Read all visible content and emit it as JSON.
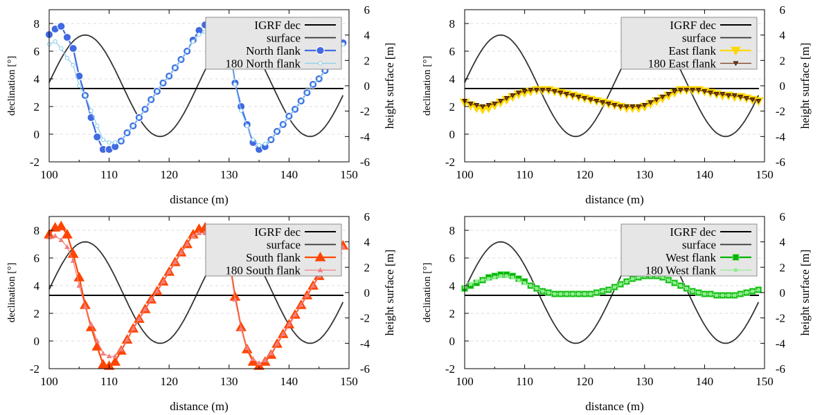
{
  "chart_data": [
    {
      "type": "line",
      "panel": "north",
      "xlabel": "distance (m)",
      "ylabel": "declination [°]",
      "y2label": "height surface [m]",
      "xlim": [
        100,
        150
      ],
      "ylim": [
        -2,
        9
      ],
      "y2lim": [
        -6,
        6
      ],
      "xticks": [
        "100",
        "110",
        "120",
        "130",
        "140",
        "150"
      ],
      "yticks": [
        "-2",
        "0",
        "2",
        "4",
        "6",
        "8"
      ],
      "y2ticks": [
        "-6",
        "-4",
        "-2",
        "0",
        "2",
        "4",
        "6"
      ],
      "grid": "horizontal dashed",
      "legend_position": "top-right",
      "igrf_dec": 3.3,
      "surface": {
        "axis": "right",
        "mean": 0,
        "amplitude": 4,
        "period": 25,
        "peak_x": 106
      },
      "series": [
        {
          "name": "IGRF dec",
          "kind": "igrf",
          "color": "#000000"
        },
        {
          "name": "surface",
          "kind": "surface",
          "color": "#333333"
        },
        {
          "name": "North flank",
          "kind": "main",
          "marker": "circle",
          "color": "#4169e1",
          "x": [
            100,
            101,
            102,
            103,
            104,
            105,
            106,
            107,
            108,
            109,
            110,
            111,
            112,
            113,
            114,
            115,
            116,
            117,
            118,
            119,
            120,
            121,
            122,
            123,
            124,
            125,
            126,
            127,
            128,
            129,
            130,
            131,
            132,
            133,
            134,
            135,
            136,
            137,
            138,
            139,
            140,
            141,
            142,
            143,
            144,
            145,
            146,
            147,
            148,
            149
          ],
          "values": [
            7.2,
            7.6,
            7.8,
            7.0,
            6.2,
            4.2,
            2.8,
            1.2,
            -0.2,
            -1.1,
            -1.1,
            -0.9,
            -0.5,
            0.1,
            0.6,
            1.2,
            1.8,
            2.5,
            3.1,
            3.7,
            4.2,
            4.8,
            5.4,
            6.0,
            6.8,
            7.5,
            7.9,
            7.4,
            7.5,
            7.5,
            6.5,
            3.7,
            2.0,
            0.7,
            -0.6,
            -1.1,
            -0.9,
            -0.4,
            0.2,
            0.7,
            1.3,
            1.8,
            2.4,
            3.0,
            3.6,
            4.0,
            4.6,
            5.2,
            5.8,
            6.6
          ]
        },
        {
          "name": "180 North flank",
          "kind": "c180",
          "marker": "small-circle",
          "color": "#87ceeb",
          "x": [
            100,
            101,
            102,
            103,
            104,
            105,
            106,
            107,
            108,
            109,
            110,
            111,
            112,
            113,
            114,
            115,
            116,
            117,
            118,
            119,
            120,
            121,
            122,
            123,
            124,
            125,
            126,
            127,
            128,
            129,
            130,
            131,
            132,
            133,
            134,
            135,
            136,
            137,
            138,
            139,
            140,
            141,
            142,
            143,
            144,
            145,
            146,
            147,
            148,
            149
          ],
          "values": [
            6.5,
            6.7,
            6.2,
            5.5,
            5.0,
            3.5,
            2.8,
            1.7,
            0.6,
            -0.4,
            -0.6,
            -0.6,
            -0.5,
            0.1,
            0.6,
            1.2,
            1.8,
            2.5,
            3.1,
            3.7,
            4.2,
            4.8,
            5.4,
            6.0,
            6.7,
            7.2,
            7.4,
            7.2,
            7.3,
            7.2,
            6.3,
            3.6,
            1.7,
            0.6,
            -0.4,
            -0.8,
            -0.7,
            -0.4,
            0.2,
            0.7,
            1.3,
            1.8,
            2.4,
            3.0,
            3.6,
            4.0,
            4.6,
            5.2,
            5.8,
            6.5
          ]
        }
      ]
    },
    {
      "type": "line",
      "panel": "east",
      "xlabel": "distance (m)",
      "ylabel": "declination [°]",
      "y2label": "height surface [m]",
      "xlim": [
        100,
        150
      ],
      "ylim": [
        -2,
        9
      ],
      "y2lim": [
        -6,
        6
      ],
      "xticks": [
        "100",
        "110",
        "120",
        "130",
        "140",
        "150"
      ],
      "yticks": [
        "-2",
        "0",
        "2",
        "4",
        "6",
        "8"
      ],
      "y2ticks": [
        "-6",
        "-4",
        "-2",
        "0",
        "2",
        "4",
        "6"
      ],
      "grid": "horizontal dashed",
      "legend_position": "top-right",
      "igrf_dec": 3.3,
      "surface": {
        "axis": "right",
        "mean": 0,
        "amplitude": 4,
        "period": 25,
        "peak_x": 106
      },
      "series": [
        {
          "name": "IGRF dec",
          "kind": "igrf",
          "color": "#000000"
        },
        {
          "name": "surface",
          "kind": "surface",
          "color": "#333333"
        },
        {
          "name": "East flank",
          "kind": "main",
          "marker": "triangle-down",
          "color": "#ffd700",
          "x": [
            100,
            101,
            102,
            103,
            104,
            105,
            106,
            107,
            108,
            109,
            110,
            111,
            112,
            113,
            114,
            115,
            116,
            117,
            118,
            119,
            120,
            121,
            122,
            123,
            124,
            125,
            126,
            127,
            128,
            129,
            130,
            131,
            132,
            133,
            134,
            135,
            136,
            137,
            138,
            139,
            140,
            141,
            142,
            143,
            144,
            145,
            146,
            147,
            148,
            149
          ],
          "values": [
            2.3,
            2.1,
            1.9,
            1.8,
            1.9,
            2.1,
            2.3,
            2.5,
            2.7,
            2.9,
            3.0,
            3.1,
            3.2,
            3.2,
            3.2,
            3.1,
            3.0,
            2.9,
            2.8,
            2.7,
            2.6,
            2.5,
            2.4,
            2.3,
            2.2,
            2.1,
            2.0,
            1.9,
            1.9,
            1.9,
            2.0,
            2.2,
            2.4,
            2.6,
            2.8,
            3.0,
            3.2,
            3.2,
            3.2,
            3.2,
            3.1,
            3.0,
            2.9,
            2.8,
            2.8,
            2.7,
            2.7,
            2.6,
            2.5,
            2.4
          ]
        },
        {
          "name": "180 East flank",
          "kind": "c180",
          "marker": "small-triangle-down",
          "color": "#7b3f1a",
          "x": [
            100,
            101,
            102,
            103,
            104,
            105,
            106,
            107,
            108,
            109,
            110,
            111,
            112,
            113,
            114,
            115,
            116,
            117,
            118,
            119,
            120,
            121,
            122,
            123,
            124,
            125,
            126,
            127,
            128,
            129,
            130,
            131,
            132,
            133,
            134,
            135,
            136,
            137,
            138,
            139,
            140,
            141,
            142,
            143,
            144,
            145,
            146,
            147,
            148,
            149
          ],
          "values": [
            2.4,
            2.2,
            2.1,
            2.0,
            2.1,
            2.2,
            2.4,
            2.6,
            2.8,
            3.0,
            3.1,
            3.2,
            3.2,
            3.2,
            3.2,
            3.1,
            3.0,
            2.9,
            2.8,
            2.7,
            2.6,
            2.5,
            2.4,
            2.3,
            2.2,
            2.1,
            2.0,
            2.0,
            2.0,
            2.0,
            2.1,
            2.3,
            2.5,
            2.7,
            2.9,
            3.1,
            3.2,
            3.2,
            3.2,
            3.2,
            3.1,
            3.0,
            2.9,
            2.9,
            2.8,
            2.8,
            2.7,
            2.6,
            2.5,
            2.4
          ]
        }
      ]
    },
    {
      "type": "line",
      "panel": "south",
      "xlabel": "distance (m)",
      "ylabel": "declination [°]",
      "y2label": "height surface [m]",
      "xlim": [
        100,
        150
      ],
      "ylim": [
        -2,
        9
      ],
      "y2lim": [
        -6,
        6
      ],
      "xticks": [
        "100",
        "110",
        "120",
        "130",
        "140",
        "150"
      ],
      "yticks": [
        "-2",
        "0",
        "2",
        "4",
        "6",
        "8"
      ],
      "y2ticks": [
        "-6",
        "-4",
        "-2",
        "0",
        "2",
        "4",
        "6"
      ],
      "grid": "horizontal dashed",
      "legend_position": "top-right",
      "igrf_dec": 3.3,
      "surface": {
        "axis": "right",
        "mean": 0,
        "amplitude": 4,
        "period": 25,
        "peak_x": 106
      },
      "series": [
        {
          "name": "IGRF dec",
          "kind": "igrf",
          "color": "#000000"
        },
        {
          "name": "surface",
          "kind": "surface",
          "color": "#333333"
        },
        {
          "name": "South flank",
          "kind": "main",
          "marker": "triangle-up",
          "color": "#ff4500",
          "x": [
            100,
            101,
            102,
            103,
            104,
            105,
            106,
            107,
            108,
            109,
            110,
            111,
            112,
            113,
            114,
            115,
            116,
            117,
            118,
            119,
            120,
            121,
            122,
            123,
            124,
            125,
            126,
            127,
            128,
            129,
            130,
            131,
            132,
            133,
            134,
            135,
            136,
            137,
            138,
            139,
            140,
            141,
            142,
            143,
            144,
            145,
            146,
            147,
            148,
            149
          ],
          "values": [
            7.7,
            8.2,
            8.3,
            7.7,
            6.3,
            4.6,
            2.6,
            1.0,
            -0.4,
            -1.7,
            -1.8,
            -1.5,
            -0.7,
            0.1,
            0.9,
            1.6,
            2.3,
            3.0,
            3.6,
            4.3,
            5.0,
            5.7,
            6.4,
            7.0,
            7.7,
            8.1,
            8.2,
            8.0,
            7.6,
            7.5,
            6.0,
            3.2,
            1.0,
            -0.6,
            -1.5,
            -1.8,
            -1.5,
            -1.0,
            -0.2,
            0.5,
            1.2,
            1.9,
            2.6,
            3.3,
            4.0,
            4.7,
            5.4,
            6.1,
            6.6,
            6.9
          ]
        },
        {
          "name": "180 South flank",
          "kind": "c180",
          "marker": "small-triangle-up",
          "color": "#f08080",
          "x": [
            100,
            101,
            102,
            103,
            104,
            105,
            106,
            107,
            108,
            109,
            110,
            111,
            112,
            113,
            114,
            115,
            116,
            117,
            118,
            119,
            120,
            121,
            122,
            123,
            124,
            125,
            126,
            127,
            128,
            129,
            130,
            131,
            132,
            133,
            134,
            135,
            136,
            137,
            138,
            139,
            140,
            141,
            142,
            143,
            144,
            145,
            146,
            147,
            148,
            149
          ],
          "values": [
            7.5,
            7.6,
            7.3,
            6.8,
            5.8,
            4.0,
            2.5,
            1.2,
            0.0,
            -0.9,
            -1.1,
            -1.1,
            -0.6,
            0.1,
            0.9,
            1.6,
            2.3,
            3.0,
            3.6,
            4.3,
            5.0,
            5.7,
            6.4,
            7.0,
            7.6,
            7.8,
            7.8,
            7.7,
            7.4,
            7.3,
            5.8,
            3.0,
            0.9,
            -0.5,
            -1.3,
            -1.6,
            -1.4,
            -0.9,
            -0.2,
            0.5,
            1.2,
            1.9,
            2.6,
            3.3,
            4.0,
            4.7,
            5.4,
            6.1,
            6.5,
            6.8
          ]
        }
      ]
    },
    {
      "type": "line",
      "panel": "west",
      "xlabel": "distance (m)",
      "ylabel": "declination [°]",
      "y2label": "height surface [m]",
      "xlim": [
        100,
        150
      ],
      "ylim": [
        -2,
        9
      ],
      "y2lim": [
        -6,
        6
      ],
      "xticks": [
        "100",
        "110",
        "120",
        "130",
        "140",
        "150"
      ],
      "yticks": [
        "-2",
        "0",
        "2",
        "4",
        "6",
        "8"
      ],
      "y2ticks": [
        "-6",
        "-4",
        "-2",
        "0",
        "2",
        "4",
        "6"
      ],
      "grid": "horizontal dashed",
      "legend_position": "top-right",
      "igrf_dec": 3.3,
      "surface": {
        "axis": "right",
        "mean": 0,
        "amplitude": 4,
        "period": 25,
        "peak_x": 106
      },
      "series": [
        {
          "name": "IGRF dec",
          "kind": "igrf",
          "color": "#000000"
        },
        {
          "name": "surface",
          "kind": "surface",
          "color": "#333333"
        },
        {
          "name": "West flank",
          "kind": "main",
          "marker": "square",
          "color": "#00b300",
          "x": [
            100,
            101,
            102,
            103,
            104,
            105,
            106,
            107,
            108,
            109,
            110,
            111,
            112,
            113,
            114,
            115,
            116,
            117,
            118,
            119,
            120,
            121,
            122,
            123,
            124,
            125,
            126,
            127,
            128,
            129,
            130,
            131,
            132,
            133,
            134,
            135,
            136,
            137,
            138,
            139,
            140,
            141,
            142,
            143,
            144,
            145,
            146,
            147,
            148,
            149
          ],
          "values": [
            3.8,
            4.0,
            4.2,
            4.4,
            4.6,
            4.7,
            4.8,
            4.8,
            4.7,
            4.5,
            4.3,
            4.0,
            3.8,
            3.6,
            3.5,
            3.4,
            3.4,
            3.4,
            3.4,
            3.4,
            3.4,
            3.4,
            3.5,
            3.6,
            3.7,
            3.9,
            4.1,
            4.3,
            4.5,
            4.6,
            4.7,
            4.7,
            4.7,
            4.6,
            4.4,
            4.2,
            4.0,
            3.8,
            3.6,
            3.5,
            3.4,
            3.4,
            3.3,
            3.3,
            3.3,
            3.3,
            3.4,
            3.5,
            3.6,
            3.7
          ]
        },
        {
          "name": "180 West flank",
          "kind": "c180",
          "marker": "small-square",
          "color": "#90ee90",
          "x": [
            100,
            101,
            102,
            103,
            104,
            105,
            106,
            107,
            108,
            109,
            110,
            111,
            112,
            113,
            114,
            115,
            116,
            117,
            118,
            119,
            120,
            121,
            122,
            123,
            124,
            125,
            126,
            127,
            128,
            129,
            130,
            131,
            132,
            133,
            134,
            135,
            136,
            137,
            138,
            139,
            140,
            141,
            142,
            143,
            144,
            145,
            146,
            147,
            148,
            149
          ],
          "values": [
            3.9,
            4.1,
            4.3,
            4.4,
            4.5,
            4.6,
            4.7,
            4.7,
            4.6,
            4.4,
            4.2,
            4.0,
            3.8,
            3.6,
            3.5,
            3.4,
            3.4,
            3.4,
            3.4,
            3.4,
            3.4,
            3.4,
            3.5,
            3.6,
            3.7,
            3.9,
            4.1,
            4.3,
            4.5,
            4.6,
            4.7,
            4.7,
            4.7,
            4.6,
            4.4,
            4.2,
            4.0,
            3.8,
            3.6,
            3.5,
            3.4,
            3.4,
            3.3,
            3.3,
            3.3,
            3.3,
            3.4,
            3.5,
            3.6,
            3.7
          ]
        }
      ]
    }
  ]
}
